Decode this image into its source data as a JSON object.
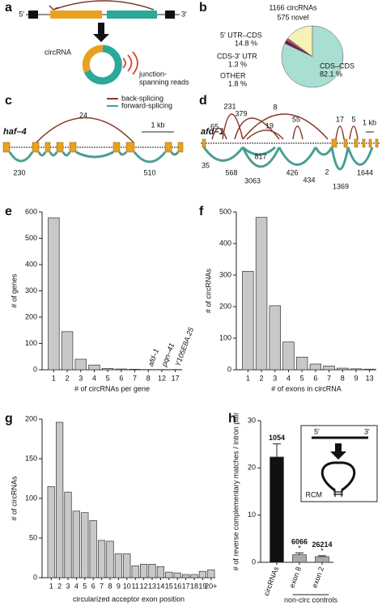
{
  "panel_labels": [
    "a",
    "b",
    "c",
    "d",
    "e",
    "f",
    "g",
    "h"
  ],
  "diagram_a": {
    "five_prime": "5′",
    "three_prime": "3′",
    "circ_label": "circRNA",
    "reads_label": [
      "junction-",
      "spanning reads"
    ]
  },
  "diagram_c": {
    "gene": "haf–4",
    "legend": [
      "back-splicing",
      "forward-splicing"
    ],
    "back_count": 24,
    "forward_counts": [
      230,
      510
    ],
    "scale": "1 kb"
  },
  "diagram_d": {
    "gene": "afd–1",
    "back_counts": [
      231,
      379,
      8,
      65,
      19,
      55,
      17,
      5
    ],
    "forward_counts": [
      817,
      35,
      568,
      3063,
      426,
      434,
      2,
      1369,
      1644
    ],
    "scale": "1 kb"
  },
  "chart_data": [
    {
      "type": "pie",
      "title": "1166 circRNAs",
      "subtitle": "575 novel",
      "categories": [
        "5' UTR–CDS",
        "CDS-3' UTR",
        "OTHER",
        "CDS–CDS"
      ],
      "values": [
        14.8,
        1.3,
        1.8,
        82.1
      ],
      "value_labels": [
        "14.8 %",
        "1.3 %",
        "1.8 %",
        "82.1 %"
      ],
      "colors": [
        "#f6f1b4",
        "#c04d8c",
        "#6e1f3e",
        "#a9ded2"
      ]
    },
    {
      "type": "bar",
      "x_label": "# of circRNAs per gene",
      "y_label": "# of genes",
      "categories": [
        "1",
        "2",
        "3",
        "4",
        "5",
        "6",
        "7",
        "8",
        "12",
        "17"
      ],
      "values": [
        578,
        145,
        40,
        18,
        5,
        3,
        2,
        1,
        1,
        1
      ],
      "bar_annotations": [
        null,
        null,
        null,
        null,
        null,
        null,
        null,
        "afd–1",
        "pqn–41",
        "Y105E8A.25"
      ],
      "color": "#c8c8c8",
      "ylim": [
        0,
        600
      ],
      "yticks": [
        0,
        100,
        200,
        300,
        400,
        500,
        600
      ]
    },
    {
      "type": "bar",
      "x_label": "# of exons in circRNA",
      "y_label": "# of circRNAs",
      "categories": [
        "1",
        "2",
        "3",
        "4",
        "5",
        "6",
        "7",
        "8",
        "9",
        "13"
      ],
      "values": [
        312,
        483,
        203,
        88,
        40,
        18,
        12,
        5,
        3,
        2
      ],
      "color": "#c8c8c8",
      "ylim": [
        0,
        500
      ],
      "yticks": [
        0,
        100,
        200,
        300,
        400,
        500
      ]
    },
    {
      "type": "bar",
      "x_label": "circularized acceptor exon position",
      "y_label": "# of circRNAs",
      "categories": [
        "1",
        "2",
        "3",
        "4",
        "5",
        "6",
        "7",
        "8",
        "9",
        "10",
        "11",
        "12",
        "13",
        "14",
        "15",
        "16",
        "17",
        "18",
        "19",
        "20+"
      ],
      "values": [
        115,
        196,
        108,
        84,
        82,
        72,
        47,
        46,
        30,
        30,
        15,
        17,
        17,
        14,
        7,
        6,
        4,
        4,
        8,
        10
      ],
      "color": "#c8c8c8",
      "ylim": [
        0,
        200
      ],
      "yticks": [
        0,
        50,
        100,
        150,
        200
      ]
    },
    {
      "type": "bar",
      "y_label": "# of reverse complementary matches / intron pair",
      "categories": [
        "circRNAs",
        "exon 8",
        "exon 2"
      ],
      "values": [
        22.3,
        1.6,
        1.2
      ],
      "errors": [
        2.8,
        0.4,
        0.2
      ],
      "counts": [
        1054,
        6066,
        26214
      ],
      "significance": [
        null,
        "*",
        "*"
      ],
      "group_label": "non-circ controls",
      "inset": {
        "five_prime": "5′",
        "three_prime": "3′",
        "label": "RCM"
      },
      "colors": [
        "#111111",
        "#aaaaaa",
        "#aaaaaa"
      ],
      "ylim": [
        0,
        30
      ],
      "yticks": [
        0,
        10,
        20,
        30
      ]
    }
  ]
}
